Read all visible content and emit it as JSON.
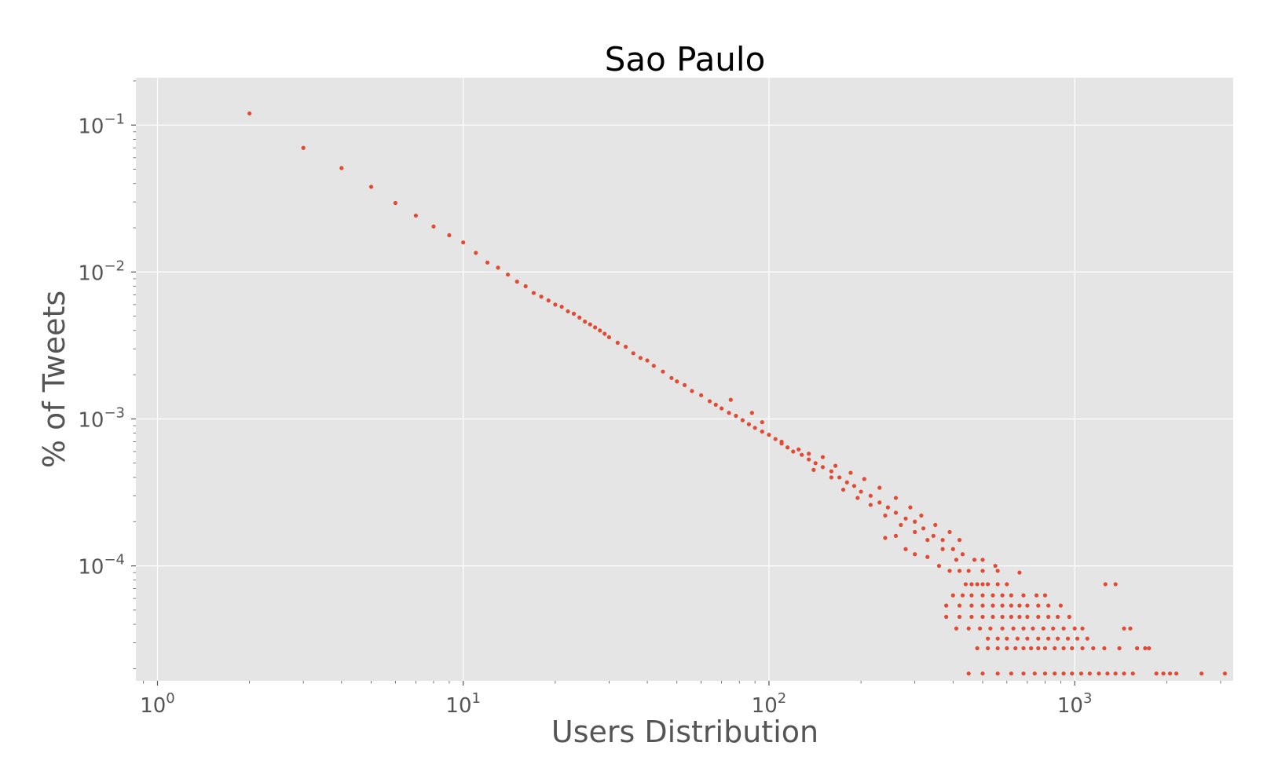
{
  "chart_data": {
    "type": "scatter",
    "title": "Sao Paulo",
    "xlabel": "Users Distribution",
    "ylabel": "% of Tweets",
    "x_scale": "log",
    "y_scale": "log",
    "xlim": [
      0.85,
      3300
    ],
    "ylim": [
      1.65e-05,
      0.21
    ],
    "grid": true,
    "style": "ggplot",
    "background_color": "#E5E5E5",
    "grid_color": "#FFFFFF",
    "point_color": "#E24A33",
    "x_ticks": [
      {
        "value": 1,
        "base": "10",
        "exp": "0"
      },
      {
        "value": 10,
        "base": "10",
        "exp": "1"
      },
      {
        "value": 100,
        "base": "10",
        "exp": "2"
      },
      {
        "value": 1000,
        "base": "10",
        "exp": "3"
      }
    ],
    "y_ticks": [
      {
        "value": 0.1,
        "base": "10",
        "exp": "−1"
      },
      {
        "value": 0.01,
        "base": "10",
        "exp": "−2"
      },
      {
        "value": 0.001,
        "base": "10",
        "exp": "−3"
      },
      {
        "value": 0.0001,
        "base": "10",
        "exp": "−4"
      }
    ],
    "series": [
      {
        "points": [
          [
            2,
            0.12
          ],
          [
            3,
            0.07
          ],
          [
            4,
            0.051
          ],
          [
            5,
            0.038
          ],
          [
            6,
            0.0295
          ],
          [
            7,
            0.0242
          ],
          [
            8,
            0.0204
          ],
          [
            9,
            0.0178
          ],
          [
            10,
            0.0159
          ],
          [
            11,
            0.0135
          ],
          [
            12,
            0.0116
          ],
          [
            13,
            0.0107
          ],
          [
            14,
            0.0096
          ],
          [
            15,
            0.0086
          ],
          [
            16,
            0.008
          ],
          [
            17,
            0.0072
          ],
          [
            18,
            0.0068
          ],
          [
            19,
            0.0064
          ],
          [
            20,
            0.006
          ],
          [
            21,
            0.0058
          ],
          [
            22,
            0.0054
          ],
          [
            23,
            0.0052
          ],
          [
            24,
            0.0049
          ],
          [
            25,
            0.0046
          ],
          [
            26,
            0.0044
          ],
          [
            27,
            0.0042
          ],
          [
            28,
            0.004
          ],
          [
            29,
            0.0038
          ],
          [
            30,
            0.0036
          ],
          [
            32,
            0.0033
          ],
          [
            34,
            0.0031
          ],
          [
            36,
            0.0028
          ],
          [
            38,
            0.0026
          ],
          [
            40,
            0.0025
          ],
          [
            42,
            0.0023
          ],
          [
            45,
            0.0021
          ],
          [
            48,
            0.0019
          ],
          [
            50,
            0.0018
          ],
          [
            53,
            0.0017
          ],
          [
            56,
            0.00155
          ],
          [
            60,
            0.00145
          ],
          [
            64,
            0.00132
          ],
          [
            67,
            0.00125
          ],
          [
            70,
            0.00118
          ],
          [
            74,
            0.0011
          ],
          [
            78,
            0.00105
          ],
          [
            82,
            0.00098
          ],
          [
            86,
            0.00092
          ],
          [
            90,
            0.00087
          ],
          [
            95,
            0.00082
          ],
          [
            100,
            0.00078
          ],
          [
            105,
            0.00073
          ],
          [
            110,
            0.00068
          ],
          [
            115,
            0.00064
          ],
          [
            120,
            0.0006
          ],
          [
            128,
            0.00057
          ],
          [
            135,
            0.00053
          ],
          [
            142,
            0.0005
          ],
          [
            150,
            0.00047
          ],
          [
            160,
            0.00044
          ],
          [
            170,
            0.0004
          ],
          [
            180,
            0.00037
          ],
          [
            190,
            0.00035
          ],
          [
            200,
            0.00032
          ],
          [
            215,
            0.0003
          ],
          [
            230,
            0.00027
          ],
          [
            245,
            0.00025
          ],
          [
            260,
            0.00023
          ],
          [
            280,
            0.00021
          ],
          [
            300,
            0.0002
          ],
          [
            320,
            0.00018
          ],
          [
            345,
            0.00016
          ],
          [
            370,
            0.00015
          ],
          [
            400,
            0.00013
          ],
          [
            430,
            0.00012
          ],
          [
            470,
            0.00011
          ],
          [
            75,
            0.00135
          ],
          [
            88,
            0.0011
          ],
          [
            95,
            0.00095
          ],
          [
            110,
            0.0007
          ],
          [
            125,
            0.00062
          ],
          [
            135,
            0.00058
          ],
          [
            150,
            0.00055
          ],
          [
            165,
            0.00048
          ],
          [
            185,
            0.00043
          ],
          [
            205,
            0.00039
          ],
          [
            230,
            0.00034
          ],
          [
            260,
            0.00029
          ],
          [
            290,
            0.00025
          ],
          [
            315,
            0.00022
          ],
          [
            350,
            0.00019
          ],
          [
            390,
            0.00017
          ],
          [
            420,
            0.00015
          ],
          [
            140,
            0.00045
          ],
          [
            160,
            0.0004
          ],
          [
            175,
            0.00033
          ],
          [
            195,
            0.00029
          ],
          [
            215,
            0.00026
          ],
          [
            240,
            0.00022
          ],
          [
            270,
            0.00019
          ],
          [
            300,
            0.00017
          ],
          [
            330,
            0.00015
          ],
          [
            370,
            0.00013
          ],
          [
            410,
            0.00011
          ],
          [
            240,
            0.000155
          ],
          [
            260,
            0.00016
          ],
          [
            280,
            0.00013
          ],
          [
            300,
            0.00012
          ],
          [
            330,
            0.000115
          ],
          [
            360,
            0.0001
          ],
          [
            390,
            9.25e-05
          ],
          [
            420,
            9.25e-05
          ],
          [
            450,
            9.25e-05
          ],
          [
            500,
            9.25e-05
          ],
          [
            560,
            9.25e-05
          ],
          [
            440,
            7.5e-05
          ],
          [
            460,
            7.5e-05
          ],
          [
            480,
            7.5e-05
          ],
          [
            500,
            7.5e-05
          ],
          [
            520,
            7.5e-05
          ],
          [
            560,
            7.5e-05
          ],
          [
            600,
            7.5e-05
          ],
          [
            400,
            6.3e-05
          ],
          [
            430,
            6.3e-05
          ],
          [
            460,
            6.3e-05
          ],
          [
            500,
            6.3e-05
          ],
          [
            540,
            6.3e-05
          ],
          [
            580,
            6.3e-05
          ],
          [
            620,
            6.3e-05
          ],
          [
            680,
            6.3e-05
          ],
          [
            750,
            6.3e-05
          ],
          [
            800,
            6.3e-05
          ],
          [
            380,
            5.37e-05
          ],
          [
            420,
            5.37e-05
          ],
          [
            460,
            5.37e-05
          ],
          [
            500,
            5.37e-05
          ],
          [
            540,
            5.37e-05
          ],
          [
            580,
            5.37e-05
          ],
          [
            620,
            5.37e-05
          ],
          [
            660,
            5.37e-05
          ],
          [
            700,
            5.37e-05
          ],
          [
            760,
            5.37e-05
          ],
          [
            820,
            5.37e-05
          ],
          [
            900,
            5.37e-05
          ],
          [
            380,
            4.5e-05
          ],
          [
            420,
            4.5e-05
          ],
          [
            460,
            4.5e-05
          ],
          [
            500,
            4.5e-05
          ],
          [
            540,
            4.5e-05
          ],
          [
            580,
            4.5e-05
          ],
          [
            620,
            4.5e-05
          ],
          [
            660,
            4.5e-05
          ],
          [
            700,
            4.5e-05
          ],
          [
            760,
            4.5e-05
          ],
          [
            820,
            4.5e-05
          ],
          [
            880,
            4.5e-05
          ],
          [
            960,
            4.5e-05
          ],
          [
            410,
            3.75e-05
          ],
          [
            450,
            3.75e-05
          ],
          [
            490,
            3.75e-05
          ],
          [
            530,
            3.75e-05
          ],
          [
            580,
            3.75e-05
          ],
          [
            630,
            3.75e-05
          ],
          [
            680,
            3.75e-05
          ],
          [
            730,
            3.75e-05
          ],
          [
            790,
            3.75e-05
          ],
          [
            850,
            3.75e-05
          ],
          [
            920,
            3.75e-05
          ],
          [
            1000,
            3.75e-05
          ],
          [
            1060,
            3.75e-05
          ],
          [
            1450,
            3.75e-05
          ],
          [
            520,
            3.2e-05
          ],
          [
            560,
            3.2e-05
          ],
          [
            600,
            3.2e-05
          ],
          [
            650,
            3.2e-05
          ],
          [
            700,
            3.2e-05
          ],
          [
            760,
            3.2e-05
          ],
          [
            820,
            3.2e-05
          ],
          [
            880,
            3.2e-05
          ],
          [
            950,
            3.2e-05
          ],
          [
            1020,
            3.2e-05
          ],
          [
            1100,
            3.2e-05
          ],
          [
            480,
            2.75e-05
          ],
          [
            520,
            2.75e-05
          ],
          [
            560,
            2.75e-05
          ],
          [
            600,
            2.75e-05
          ],
          [
            640,
            2.75e-05
          ],
          [
            680,
            2.75e-05
          ],
          [
            720,
            2.75e-05
          ],
          [
            760,
            2.75e-05
          ],
          [
            800,
            2.75e-05
          ],
          [
            860,
            2.75e-05
          ],
          [
            920,
            2.75e-05
          ],
          [
            980,
            2.75e-05
          ],
          [
            1060,
            2.75e-05
          ],
          [
            1150,
            2.75e-05
          ],
          [
            1250,
            2.75e-05
          ],
          [
            1400,
            2.75e-05
          ],
          [
            1600,
            2.75e-05
          ],
          [
            1750,
            2.75e-05
          ],
          [
            450,
            1.85e-05
          ],
          [
            500,
            1.85e-05
          ],
          [
            560,
            1.85e-05
          ],
          [
            620,
            1.85e-05
          ],
          [
            680,
            1.85e-05
          ],
          [
            740,
            1.85e-05
          ],
          [
            800,
            1.85e-05
          ],
          [
            860,
            1.85e-05
          ],
          [
            920,
            1.85e-05
          ],
          [
            980,
            1.85e-05
          ],
          [
            1050,
            1.85e-05
          ],
          [
            1120,
            1.85e-05
          ],
          [
            1200,
            1.85e-05
          ],
          [
            1280,
            1.85e-05
          ],
          [
            1360,
            1.85e-05
          ],
          [
            1450,
            1.85e-05
          ],
          [
            1550,
            1.85e-05
          ],
          [
            1850,
            1.85e-05
          ],
          [
            1950,
            1.85e-05
          ],
          [
            2050,
            1.85e-05
          ],
          [
            2150,
            1.85e-05
          ],
          [
            2600,
            1.85e-05
          ],
          [
            3100,
            1.85e-05
          ],
          [
            660,
            9e-05
          ],
          [
            1360,
            7.5e-05
          ],
          [
            1260,
            7.5e-05
          ],
          [
            1520,
            3.75e-05
          ],
          [
            550,
            0.0001
          ],
          [
            500,
            0.00011
          ],
          [
            1700,
            2.75e-05
          ]
        ]
      }
    ]
  }
}
